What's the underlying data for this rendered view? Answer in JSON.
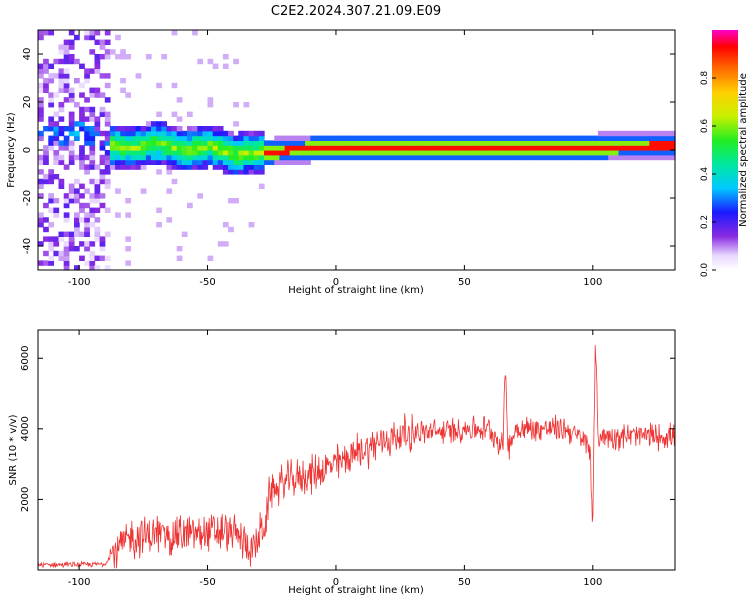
{
  "title": "C2E2.2024.307.21.09.E09",
  "chart_data": [
    {
      "type": "heatmap",
      "xlabel": "Height of straight line (km)",
      "ylabel": "Frequency (Hz)",
      "xlim": [
        -116,
        132
      ],
      "ylim": [
        -50,
        50
      ],
      "xticks": [
        -100,
        -50,
        0,
        50,
        100
      ],
      "yticks": [
        -40,
        -20,
        0,
        20,
        40
      ],
      "colorbar": {
        "label": "Normalized spectral amplitude",
        "range": [
          0,
          1
        ],
        "ticks": [
          "0.0",
          "0.2",
          "0.4",
          "0.6",
          "0.8"
        ],
        "tick_values": [
          0,
          0.2,
          0.4,
          0.6,
          0.8
        ],
        "colormap": "rainbow"
      },
      "ridge": {
        "x": [
          -116,
          -100,
          -90,
          -80,
          -70,
          -60,
          -50,
          -40,
          -35,
          -30,
          -25,
          -20,
          -10,
          0,
          25,
          50,
          75,
          100,
          125,
          132
        ],
        "y": [
          5,
          8,
          2,
          1,
          3,
          0,
          2,
          -2,
          -1,
          -1,
          -1,
          0,
          1,
          1,
          1,
          1,
          1,
          1,
          2,
          2
        ]
      },
      "grid": false,
      "legend": "none"
    },
    {
      "type": "line",
      "xlabel": "Height of straight line (km)",
      "ylabel": "SNR (10 * v/v)",
      "xlim": [
        -116,
        132
      ],
      "ylim": [
        0,
        6800
      ],
      "xticks": [
        -100,
        -50,
        0,
        50,
        100
      ],
      "yticks": [
        2000,
        4000,
        6000
      ],
      "color": "#ee3333",
      "series_envelope": {
        "x": [
          -116,
          -100,
          -90,
          -87,
          -80,
          -70,
          -60,
          -50,
          -40,
          -32,
          -27,
          -26,
          -20,
          -10,
          0,
          10,
          20,
          30,
          40,
          50,
          60,
          65,
          66,
          67,
          70,
          80,
          90,
          99,
          100,
          101,
          102,
          110,
          120,
          132
        ],
        "y": [
          150,
          150,
          170,
          500,
          900,
          1000,
          1000,
          1050,
          1050,
          600,
          1400,
          2200,
          2500,
          2700,
          3000,
          3400,
          3700,
          3900,
          3900,
          4000,
          4000,
          3500,
          5800,
          3400,
          4000,
          4000,
          4000,
          3500,
          1100,
          6600,
          3800,
          3800,
          3800,
          3800
        ]
      },
      "grid": false,
      "legend": "none"
    }
  ]
}
